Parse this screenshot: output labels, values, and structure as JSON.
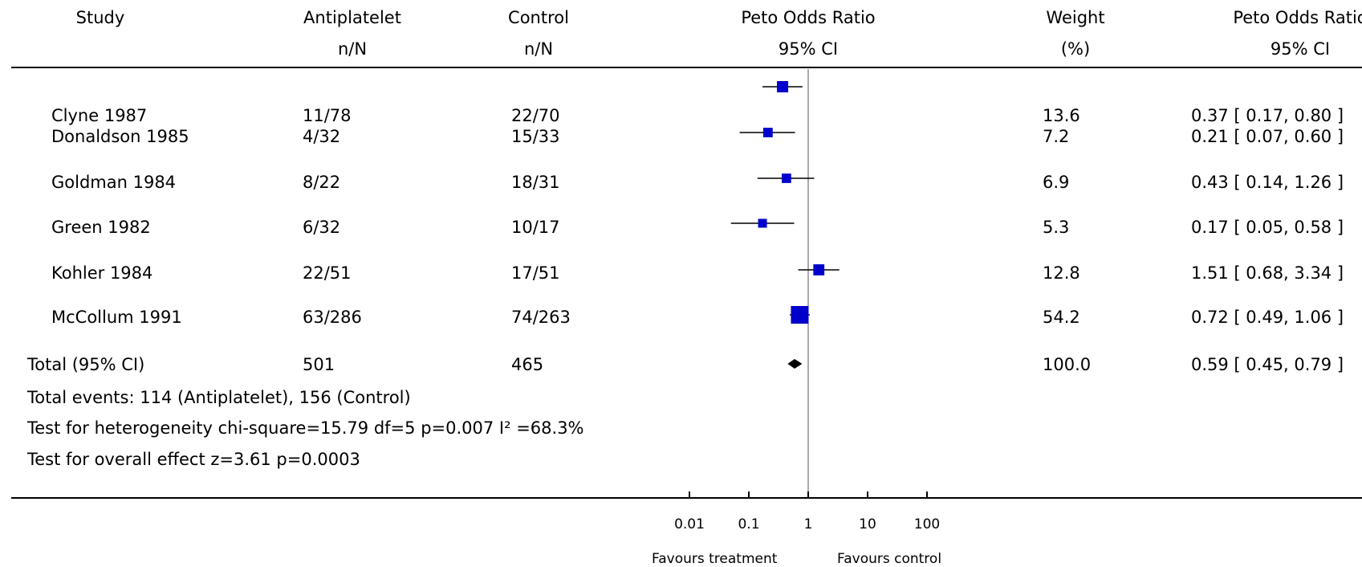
{
  "headers": {
    "study": "Study",
    "antiplatelet": "Antiplatelet",
    "antiplatelet_sub": "n/N",
    "control": "Control",
    "control_sub": "n/N",
    "plot": "Peto Odds Ratio",
    "plot_sub": "95% CI",
    "weight": "Weight",
    "weight_sub": "(%)",
    "or": "Peto Odds Ratio",
    "or_sub": "95% CI"
  },
  "rows": [
    {
      "study": "Clyne 1987",
      "antiplatelet": "11/78",
      "control": "22/70",
      "weight": "13.6",
      "ci_text": "0.37 [ 0.17, 0.80 ]"
    },
    {
      "study": "Donaldson 1985",
      "antiplatelet": "4/32",
      "control": "15/33",
      "weight": "7.2",
      "ci_text": "0.21 [ 0.07, 0.60 ]"
    },
    {
      "study": "Goldman 1984",
      "antiplatelet": "8/22",
      "control": "18/31",
      "weight": "6.9",
      "ci_text": "0.43 [ 0.14, 1.26 ]"
    },
    {
      "study": "Green 1982",
      "antiplatelet": "6/32",
      "control": "10/17",
      "weight": "5.3",
      "ci_text": "0.17 [ 0.05, 0.58 ]"
    },
    {
      "study": "Kohler 1984",
      "antiplatelet": "22/51",
      "control": "17/51",
      "weight": "12.8",
      "ci_text": "1.51 [ 0.68, 3.34 ]"
    },
    {
      "study": "McCollum 1991",
      "antiplatelet": "63/286",
      "control": "74/263",
      "weight": "54.2",
      "ci_text": "0.72 [ 0.49, 1.06 ]"
    }
  ],
  "total": {
    "label": "Total (95% CI)",
    "antiplatelet": "501",
    "control": "465",
    "weight": "100.0",
    "ci_text": "0.59 [ 0.45, 0.79 ]"
  },
  "notes": {
    "events": "Total events: 114 (Antiplatelet), 156 (Control)",
    "heterogeneity": "Test for heterogeneity chi-square=15.79 df=5 p=0.007 I² =68.3%",
    "overall": "Test for overall effect z=3.61    p=0.0003"
  },
  "axis": {
    "ticks": [
      "0.01",
      "0.1",
      "1",
      "10",
      "100"
    ],
    "favours_left": "Favours treatment",
    "favours_right": "Favours control"
  },
  "colors": {
    "marker": "#0000cc",
    "diamond": "#000000"
  },
  "chart_data": {
    "type": "forest",
    "title": "",
    "xlabel": "",
    "x_scale": "log",
    "xlim": [
      0.01,
      100
    ],
    "x_ticks": [
      0.01,
      0.1,
      1,
      10,
      100
    ],
    "reference_line": 1,
    "studies": [
      {
        "name": "Clyne 1987",
        "or": 0.37,
        "lower": 0.17,
        "upper": 0.8,
        "weight": 13.6
      },
      {
        "name": "Donaldson 1985",
        "or": 0.21,
        "lower": 0.07,
        "upper": 0.6,
        "weight": 7.2
      },
      {
        "name": "Goldman 1984",
        "or": 0.43,
        "lower": 0.14,
        "upper": 1.26,
        "weight": 6.9
      },
      {
        "name": "Green 1982",
        "or": 0.17,
        "lower": 0.05,
        "upper": 0.58,
        "weight": 5.3
      },
      {
        "name": "Kohler 1984",
        "or": 1.51,
        "lower": 0.68,
        "upper": 3.34,
        "weight": 12.8
      },
      {
        "name": "McCollum 1991",
        "or": 0.72,
        "lower": 0.49,
        "upper": 1.06,
        "weight": 54.2
      }
    ],
    "pooled": {
      "name": "Total (95% CI)",
      "or": 0.59,
      "lower": 0.45,
      "upper": 0.79,
      "weight": 100.0
    }
  }
}
